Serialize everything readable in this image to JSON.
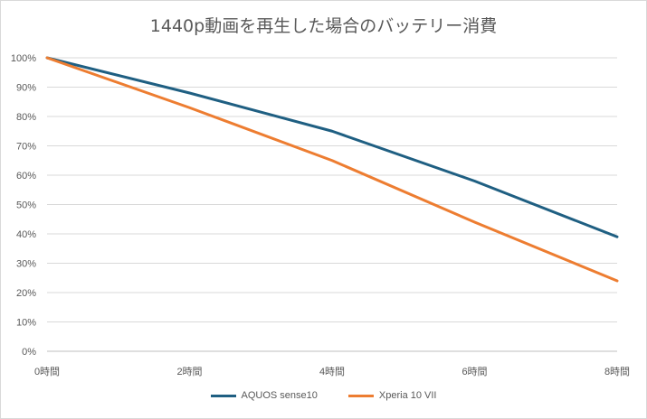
{
  "chart_data": {
    "type": "line",
    "title": "1440p動画を再生した場合のバッテリー消費",
    "xlabel": "",
    "ylabel": "",
    "x": [
      0,
      2,
      4,
      6,
      8
    ],
    "x_tick_labels": [
      "0時間",
      "2時間",
      "4時間",
      "6時間",
      "8時間"
    ],
    "y_tick_labels": [
      "0%",
      "10%",
      "20%",
      "30%",
      "40%",
      "50%",
      "60%",
      "70%",
      "80%",
      "90%",
      "100%"
    ],
    "ylim": [
      0,
      100
    ],
    "grid": true,
    "legend_position": "bottom",
    "series": [
      {
        "name": "AQUOS sense10",
        "color": "#1f5f82",
        "values": [
          100,
          88,
          75,
          58,
          39
        ]
      },
      {
        "name": "Xperia 10 VII",
        "color": "#ed7d31",
        "values": [
          100,
          83,
          65,
          44,
          24
        ]
      }
    ]
  }
}
